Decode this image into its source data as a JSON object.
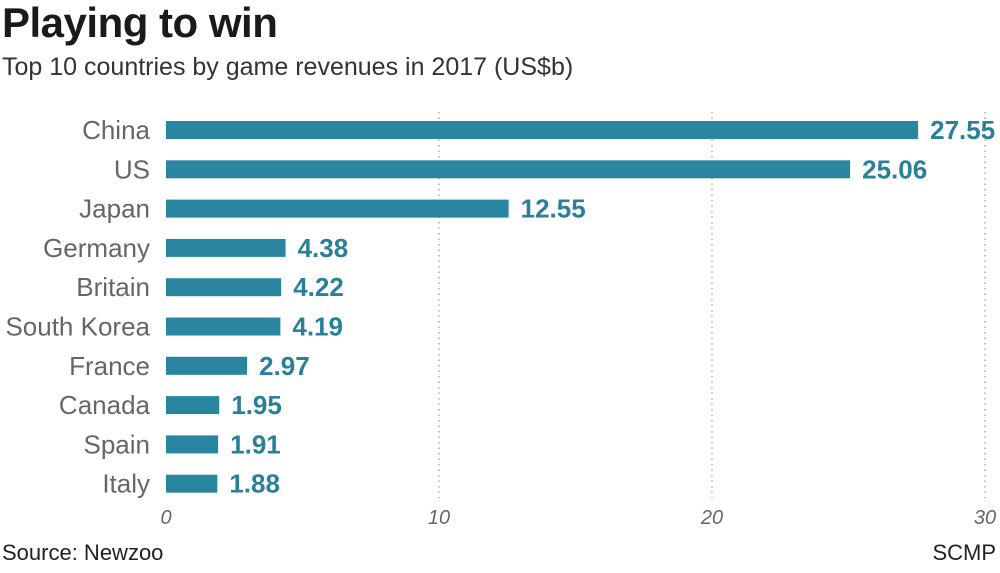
{
  "chart_data": {
    "type": "bar",
    "orientation": "horizontal",
    "title": "Playing to win",
    "subtitle": "Top 10 countries by game revenues in 2017 (US$b)",
    "categories": [
      "China",
      "US",
      "Japan",
      "Germany",
      "Britain",
      "South Korea",
      "France",
      "Canada",
      "Spain",
      "Italy"
    ],
    "values": [
      27.55,
      25.06,
      12.55,
      4.38,
      4.22,
      4.19,
      2.97,
      1.95,
      1.91,
      1.88
    ],
    "value_labels": [
      "27.55",
      "25.06",
      "12.55",
      "4.38",
      "4.22",
      "4.19",
      "2.97",
      "1.95",
      "1.91",
      "1.88"
    ],
    "xlim": [
      0,
      30
    ],
    "x_ticks": [
      "0",
      "10",
      "20",
      "30"
    ],
    "grid": "vertical dotted",
    "bar_color": "#2a86a0",
    "label_color": "#2a7f99"
  },
  "footer": {
    "source": "Source: Newzoo",
    "credit": "SCMP"
  }
}
